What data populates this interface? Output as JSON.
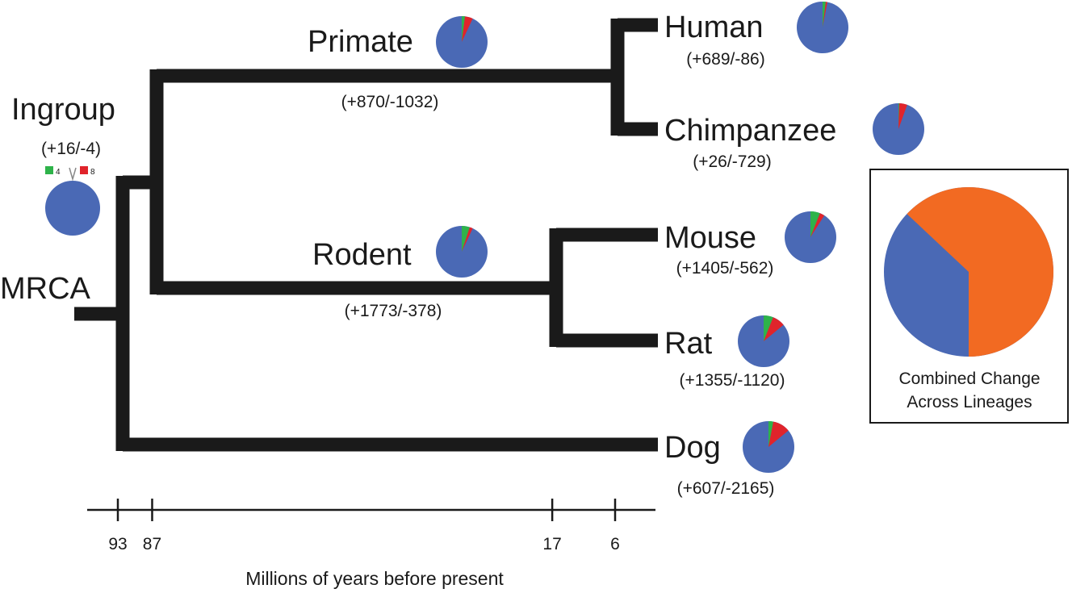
{
  "colors": {
    "branch": "#1a1a1a",
    "unchanged": "#4a69b5",
    "gain": "#2eb34a",
    "loss": "#e0242b",
    "combined_gain": "#f26a22",
    "combined_base": "#4a69b5"
  },
  "nodes": {
    "mrca": {
      "name": "MRCA"
    },
    "ingroup": {
      "name": "Ingroup",
      "counts": "(+16/-4)",
      "gain_label": "4",
      "loss_label": "8"
    },
    "primate": {
      "name": "Primate",
      "counts": "(+870/-1032)"
    },
    "rodent": {
      "name": "Rodent",
      "counts": "(+1773/-378)"
    },
    "human": {
      "name": "Human",
      "counts": "(+689/-86)"
    },
    "chimpanzee": {
      "name": "Chimpanzee",
      "counts": "(+26/-729)"
    },
    "mouse": {
      "name": "Mouse",
      "counts": "(+1405/-562)"
    },
    "rat": {
      "name": "Rat",
      "counts": "(+1355/-1120)"
    },
    "dog": {
      "name": "Dog",
      "counts": "(+607/-2165)"
    }
  },
  "pies": {
    "primate": {
      "gain": 0.02,
      "loss": 0.05
    },
    "rodent": {
      "gain": 0.05,
      "loss": 0.02
    },
    "human": {
      "gain": 0.02,
      "loss": 0.01
    },
    "chimpanzee": {
      "gain": 0.005,
      "loss": 0.05
    },
    "mouse": {
      "gain": 0.06,
      "loss": 0.03
    },
    "rat": {
      "gain": 0.06,
      "loss": 0.08
    },
    "dog": {
      "gain": 0.03,
      "loss": 0.11
    },
    "ingroup": {
      "gain": 0.0,
      "loss": 0.0
    }
  },
  "combined": {
    "caption_line1": "Combined Change",
    "caption_line2": "Across Lineages",
    "orange_fraction": 0.63
  },
  "axis": {
    "title": "Millions of years before present",
    "ticks": [
      {
        "value": 93,
        "label": "93"
      },
      {
        "value": 87,
        "label": "87"
      },
      {
        "value": 17,
        "label": "17"
      },
      {
        "value": 6,
        "label": "6"
      }
    ]
  }
}
